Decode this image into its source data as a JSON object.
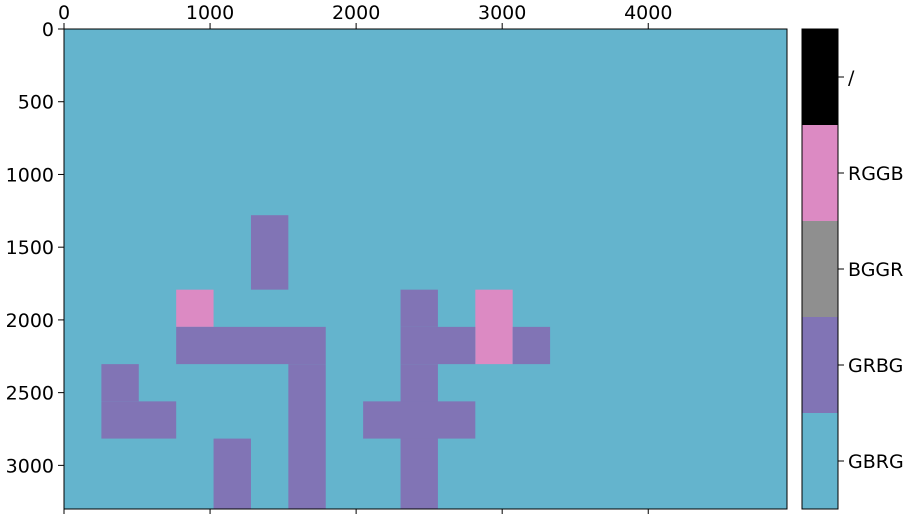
{
  "chart_data": {
    "type": "heatmap",
    "title": "",
    "xlabel": "",
    "ylabel": "",
    "x_axis_position": "top",
    "xlim": [
      0,
      4950
    ],
    "ylim": [
      3300,
      0
    ],
    "cell_size": [
      256,
      256
    ],
    "xticks": [
      0,
      1000,
      2000,
      3000,
      4000
    ],
    "yticks": [
      0,
      500,
      1000,
      1500,
      2000,
      2500,
      3000
    ],
    "colorbar": {
      "position": "right",
      "categories": [
        {
          "label": "GBRG",
          "color": "#64b4cd"
        },
        {
          "label": "GRBG",
          "color": "#8174b5"
        },
        {
          "label": "BGGR",
          "color": "#8f8f8f"
        },
        {
          "label": "RGGB",
          "color": "#dc8ac3"
        },
        {
          "label": "/",
          "color": "#000000"
        }
      ]
    },
    "background_category": "GBRG",
    "cells": [
      {
        "category": "GRBG",
        "x": [
          1280,
          1536
        ],
        "y": [
          1280,
          1792
        ]
      },
      {
        "category": "RGGB",
        "x": [
          768,
          1024
        ],
        "y": [
          1792,
          2048
        ]
      },
      {
        "category": "GRBG",
        "x": [
          2304,
          2560
        ],
        "y": [
          1792,
          2048
        ]
      },
      {
        "category": "RGGB",
        "x": [
          2816,
          3072
        ],
        "y": [
          1792,
          2304
        ]
      },
      {
        "category": "GRBG",
        "x": [
          768,
          1792
        ],
        "y": [
          2048,
          2304
        ]
      },
      {
        "category": "GRBG",
        "x": [
          2304,
          2816
        ],
        "y": [
          2048,
          2304
        ]
      },
      {
        "category": "GRBG",
        "x": [
          3072,
          3328
        ],
        "y": [
          2048,
          2304
        ]
      },
      {
        "category": "GRBG",
        "x": [
          256,
          512
        ],
        "y": [
          2304,
          2560
        ]
      },
      {
        "category": "GRBG",
        "x": [
          1536,
          1792
        ],
        "y": [
          2304,
          3300
        ]
      },
      {
        "category": "GRBG",
        "x": [
          2304,
          2560
        ],
        "y": [
          2304,
          3300
        ]
      },
      {
        "category": "GRBG",
        "x": [
          256,
          768
        ],
        "y": [
          2560,
          2816
        ]
      },
      {
        "category": "GRBG",
        "x": [
          2048,
          2816
        ],
        "y": [
          2560,
          2816
        ]
      },
      {
        "category": "GRBG",
        "x": [
          1024,
          1280
        ],
        "y": [
          2816,
          3300
        ]
      }
    ]
  }
}
